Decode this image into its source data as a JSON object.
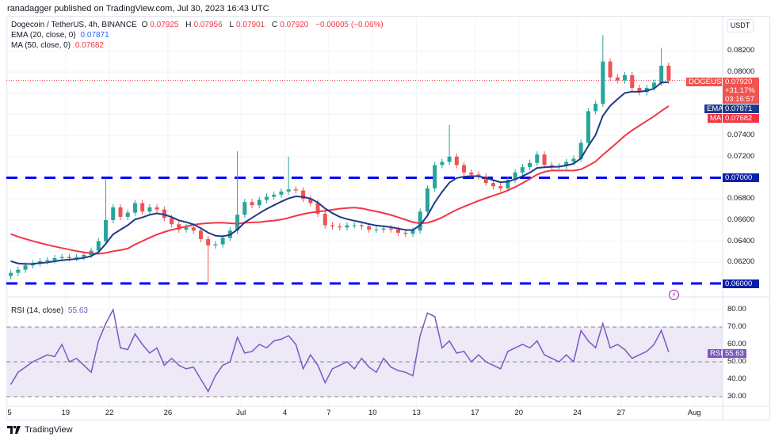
{
  "publisher_line": "ranadagger published on TradingView.com, Jul 30, 2023 16:43 UTC",
  "header": {
    "symbol_desc": "Dogecoin / TetherUS, 4h, BINANCE",
    "o_label": "O",
    "o": "0.07925",
    "h_label": "H",
    "h": "0.07956",
    "l_label": "L",
    "l": "0.07901",
    "c_label": "C",
    "c": "0.07920",
    "change": "−0.00005 (−0.06%)",
    "ema_label": "EMA (20, close, 0)",
    "ema_value": "0.07871",
    "ma_label": "MA (50, close, 0)",
    "ma_value": "0.07682",
    "rsi_label": "RSI (14, close)",
    "rsi_value": "55.63"
  },
  "axis": {
    "unit": "USDT",
    "price_ticks": [
      "0.08200",
      "0.08000",
      "0.07400",
      "0.07200",
      "0.06800",
      "0.06600",
      "0.06400",
      "0.06200"
    ],
    "rsi_ticks": [
      "80.00",
      "70.00",
      "60.00",
      "50.00",
      "40.00",
      "30.00"
    ],
    "x_ticks": [
      {
        "label": "5",
        "day": 0
      },
      {
        "label": "19",
        "day": 4
      },
      {
        "label": "22",
        "day": 7
      },
      {
        "label": "26",
        "day": 11
      },
      {
        "label": "Jul",
        "day": 16
      },
      {
        "label": "4",
        "day": 19
      },
      {
        "label": "7",
        "day": 22
      },
      {
        "label": "10",
        "day": 25
      },
      {
        "label": "13",
        "day": 28
      },
      {
        "label": "17",
        "day": 32
      },
      {
        "label": "20",
        "day": 35
      },
      {
        "label": "24",
        "day": 39
      },
      {
        "label": "27",
        "day": 42
      },
      {
        "label": "Aug",
        "day": 47
      }
    ]
  },
  "tags": {
    "symbol": "DOGEUSDT",
    "price": "0.07920",
    "pct": "+31.17%",
    "countdown": "03:16:57",
    "ema": "EMA",
    "ema_value": "0.07871",
    "ma": "MA",
    "ma_value": "0.07682",
    "level_70": "0.07000",
    "level_60": "0.06000",
    "rsi": "RSI",
    "rsi_value": "55.63"
  },
  "branding": "TradingView",
  "colors": {
    "up": "#26a69a",
    "down": "#ef5350",
    "ema": "#1e3a8a",
    "ma": "#f23645",
    "level": "#0000ff",
    "rsi": "#7e57c2",
    "rsi_band": "#ede9f7"
  },
  "chart_data": {
    "type": "candlestick",
    "interval_note": "12h sampled closes, from Jun 15 2023 to Jul 30 2023",
    "price_ylim": [
      0.0592,
      0.085
    ],
    "horizontal_levels": [
      0.07,
      0.06
    ],
    "last_price": 0.0792,
    "closes": [
      0.061,
      0.0613,
      0.0617,
      0.0619,
      0.0621,
      0.0622,
      0.0624,
      0.0625,
      0.0624,
      0.0625,
      0.0627,
      0.0631,
      0.064,
      0.066,
      0.0672,
      0.0663,
      0.0667,
      0.0676,
      0.0668,
      0.0672,
      0.067,
      0.0662,
      0.0656,
      0.0651,
      0.0653,
      0.065,
      0.0642,
      0.0636,
      0.0637,
      0.0643,
      0.065,
      0.0665,
      0.0677,
      0.0674,
      0.0679,
      0.0682,
      0.0684,
      0.0687,
      0.0689,
      0.0688,
      0.068,
      0.0676,
      0.0666,
      0.0655,
      0.0654,
      0.0653,
      0.0655,
      0.0655,
      0.0654,
      0.0651,
      0.0651,
      0.0652,
      0.0651,
      0.0648,
      0.0647,
      0.065,
      0.0668,
      0.069,
      0.0712,
      0.0715,
      0.072,
      0.0712,
      0.0705,
      0.0703,
      0.0701,
      0.0695,
      0.0692,
      0.069,
      0.0698,
      0.0705,
      0.071,
      0.0714,
      0.0722,
      0.0712,
      0.0711,
      0.0711,
      0.0715,
      0.0718,
      0.0733,
      0.0763,
      0.077,
      0.081,
      0.0795,
      0.0792,
      0.0797,
      0.0785,
      0.0781,
      0.0785,
      0.079,
      0.0806,
      0.0792
    ],
    "wicks": [
      {
        "i": 27,
        "low": 0.06
      },
      {
        "i": 31,
        "high": 0.0725
      },
      {
        "i": 38,
        "high": 0.072
      },
      {
        "i": 60,
        "high": 0.075
      },
      {
        "i": 81,
        "high": 0.0835
      },
      {
        "i": 89,
        "high": 0.0823
      },
      {
        "i": 13,
        "high": 0.07
      }
    ],
    "rsi": {
      "ylim": [
        27,
        83
      ],
      "band": [
        30,
        70
      ],
      "mid": 50,
      "values": [
        37,
        44,
        47,
        50,
        52,
        54,
        53,
        60,
        50,
        52,
        48,
        44,
        62,
        72,
        80,
        58,
        57,
        66,
        60,
        55,
        58,
        48,
        52,
        48,
        46,
        47,
        40,
        33,
        42,
        48,
        50,
        64,
        55,
        56,
        60,
        58,
        62,
        63,
        65,
        60,
        46,
        54,
        48,
        38,
        46,
        48,
        50,
        46,
        52,
        47,
        44,
        52,
        47,
        45,
        44,
        42,
        65,
        78,
        76,
        58,
        62,
        55,
        56,
        50,
        54,
        50,
        48,
        46,
        56,
        58,
        60,
        58,
        62,
        54,
        52,
        50,
        54,
        50,
        68,
        62,
        58,
        72,
        58,
        60,
        57,
        52,
        54,
        56,
        60,
        68,
        55.63
      ]
    }
  }
}
